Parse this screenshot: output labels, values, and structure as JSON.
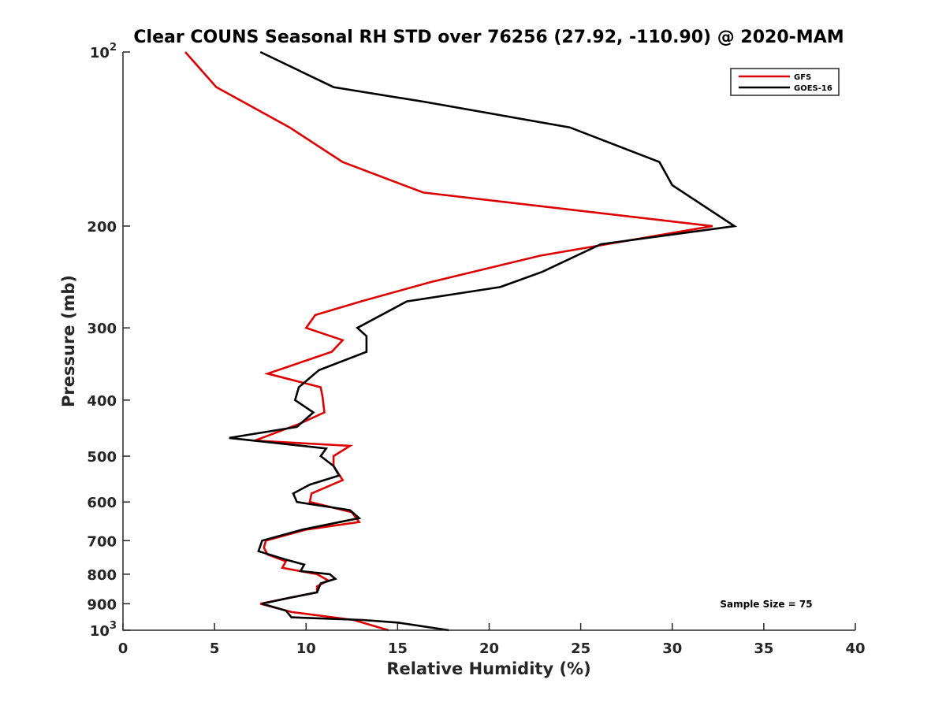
{
  "chart_data": {
    "type": "line",
    "title": "Clear COUNS Seasonal RH STD over 76256 (27.92, -110.90) @ 2020-MAM",
    "xlabel": "Relative Humidity (%)",
    "ylabel": "Pressure (mb)",
    "xlim": [
      0,
      40
    ],
    "ylim": [
      100,
      1000
    ],
    "yscale": "log",
    "yreversed": true,
    "xticks": [
      0,
      5,
      10,
      15,
      20,
      25,
      30,
      35,
      40
    ],
    "xtick_labels": [
      "0",
      "5",
      "10",
      "15",
      "20",
      "25",
      "30",
      "35",
      "40"
    ],
    "yticks": [
      100,
      200,
      300,
      400,
      500,
      600,
      700,
      800,
      900,
      1000
    ],
    "ytick_labels": [
      {
        "base": "10",
        "exp": "2"
      },
      {
        "base": "200",
        "exp": ""
      },
      {
        "base": "300",
        "exp": ""
      },
      {
        "base": "400",
        "exp": ""
      },
      {
        "base": "500",
        "exp": ""
      },
      {
        "base": "600",
        "exp": ""
      },
      {
        "base": "700",
        "exp": ""
      },
      {
        "base": "800",
        "exp": ""
      },
      {
        "base": "900",
        "exp": ""
      },
      {
        "base": "10",
        "exp": "3"
      }
    ],
    "grid": false,
    "legend_position": "top-right",
    "annotation": "Sample Size = 75",
    "series": [
      {
        "name": "GFS",
        "color": "#dd0000",
        "points": [
          [
            3.4,
            100
          ],
          [
            5.1,
            115
          ],
          [
            9.1,
            135
          ],
          [
            12.0,
            155
          ],
          [
            16.4,
            175
          ],
          [
            32.2,
            200
          ],
          [
            22.8,
            225
          ],
          [
            16.8,
            250
          ],
          [
            13.0,
            270
          ],
          [
            10.5,
            285
          ],
          [
            10.0,
            300
          ],
          [
            12.0,
            315
          ],
          [
            11.4,
            330
          ],
          [
            7.9,
            360
          ],
          [
            10.8,
            380
          ],
          [
            10.9,
            395
          ],
          [
            11.0,
            420
          ],
          [
            9.6,
            440
          ],
          [
            7.2,
            470
          ],
          [
            12.4,
            480
          ],
          [
            11.5,
            500
          ],
          [
            11.5,
            520
          ],
          [
            12.0,
            550
          ],
          [
            10.3,
            580
          ],
          [
            10.2,
            600
          ],
          [
            12.5,
            625
          ],
          [
            12.9,
            650
          ],
          [
            10.0,
            670
          ],
          [
            7.8,
            700
          ],
          [
            7.7,
            720
          ],
          [
            7.9,
            740
          ],
          [
            8.9,
            760
          ],
          [
            8.7,
            780
          ],
          [
            10.6,
            800
          ],
          [
            11.2,
            820
          ],
          [
            10.6,
            840
          ],
          [
            10.6,
            860
          ],
          [
            9.0,
            880
          ],
          [
            7.5,
            900
          ],
          [
            9.2,
            930
          ],
          [
            12.6,
            960
          ],
          [
            14.5,
            1000
          ]
        ]
      },
      {
        "name": "GOES-16",
        "color": "#000000",
        "points": [
          [
            7.5,
            100
          ],
          [
            11.5,
            115
          ],
          [
            16.5,
            122
          ],
          [
            24.4,
            135
          ],
          [
            29.3,
            155
          ],
          [
            30.0,
            170
          ],
          [
            33.4,
            200
          ],
          [
            26.1,
            215
          ],
          [
            22.9,
            240
          ],
          [
            20.6,
            255
          ],
          [
            15.5,
            270
          ],
          [
            12.8,
            300
          ],
          [
            13.3,
            310
          ],
          [
            13.3,
            330
          ],
          [
            10.7,
            355
          ],
          [
            9.6,
            380
          ],
          [
            9.4,
            400
          ],
          [
            10.4,
            420
          ],
          [
            9.5,
            445
          ],
          [
            5.8,
            465
          ],
          [
            11.1,
            485
          ],
          [
            10.8,
            500
          ],
          [
            11.5,
            520
          ],
          [
            11.8,
            540
          ],
          [
            10.2,
            560
          ],
          [
            9.3,
            580
          ],
          [
            9.5,
            600
          ],
          [
            12.4,
            620
          ],
          [
            12.9,
            640
          ],
          [
            9.8,
            670
          ],
          [
            7.6,
            700
          ],
          [
            7.4,
            730
          ],
          [
            8.9,
            755
          ],
          [
            9.9,
            770
          ],
          [
            9.7,
            790
          ],
          [
            11.3,
            800
          ],
          [
            11.6,
            815
          ],
          [
            10.8,
            830
          ],
          [
            10.6,
            860
          ],
          [
            9.0,
            880
          ],
          [
            7.6,
            900
          ],
          [
            8.9,
            925
          ],
          [
            9.2,
            950
          ],
          [
            13.1,
            960
          ],
          [
            15.0,
            970
          ],
          [
            17.8,
            1000
          ]
        ]
      }
    ]
  }
}
